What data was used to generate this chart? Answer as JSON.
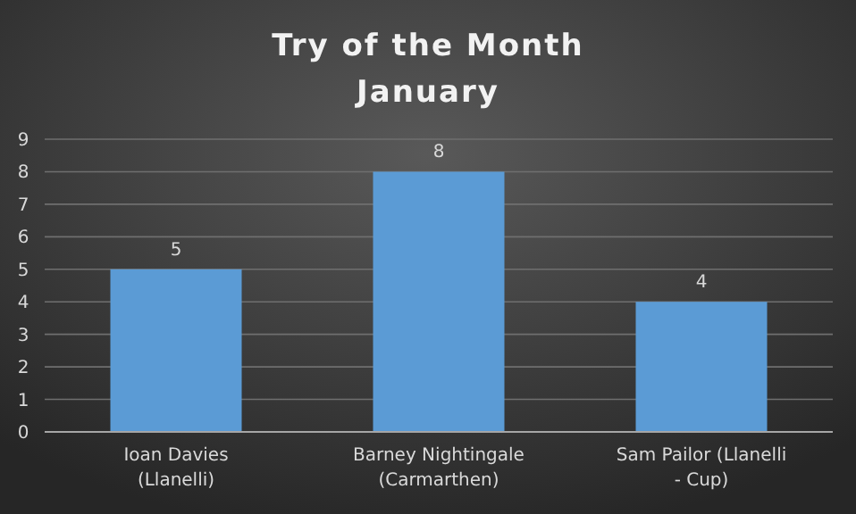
{
  "chart_data": {
    "type": "bar",
    "title": "Try of the Month",
    "subtitle": "January",
    "categories": [
      "Ioan Davies (Llanelli)",
      "Barney Nightingale (Carmarthen)",
      "Sam Pailor (Llanelli - Cup)"
    ],
    "values": [
      5,
      8,
      4
    ],
    "color": "#5b9bd5",
    "ylim": [
      0,
      9
    ],
    "yticks": [
      0,
      1,
      2,
      3,
      4,
      5,
      6,
      7,
      8,
      9
    ],
    "grid": "y",
    "data_labels": true
  }
}
